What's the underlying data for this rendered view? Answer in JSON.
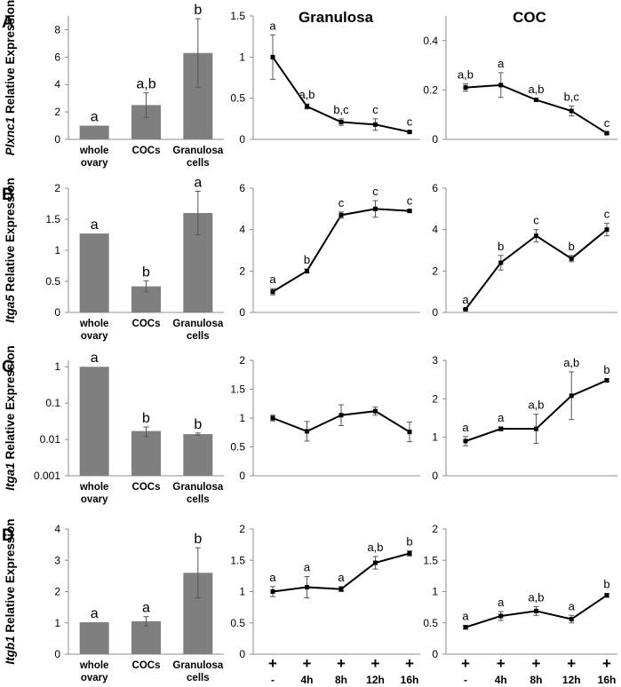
{
  "titles": {
    "granulosa": "Granulosa",
    "coc": "COC"
  },
  "x_timepoints": [
    "-",
    "4h",
    "8h",
    "12h",
    "16h"
  ],
  "plus_sign": "+",
  "tissue_categories": [
    [
      "whole",
      "ovary"
    ],
    [
      "COCs"
    ],
    [
      "Granulosa",
      "cells"
    ]
  ],
  "ylabel_suffix": "Relative Expression",
  "colors": {
    "bar": "#7f7f7f",
    "line": "#000000",
    "axis": "#8c8c8c"
  },
  "chart_data": [
    {
      "panel": "A",
      "gene": "Plxnc1",
      "bar": {
        "type": "bar",
        "scale": "linear",
        "ylim": [
          0,
          9
        ],
        "ticks": [
          0,
          2,
          4,
          6,
          8
        ],
        "tick_labels": [
          "0",
          "2",
          "4",
          "6",
          "8"
        ],
        "values": [
          1.0,
          2.5,
          6.3
        ],
        "errors": [
          0.0,
          0.9,
          2.5
        ],
        "letters": [
          "a",
          "a,b",
          "b"
        ]
      },
      "granulosa": {
        "type": "line",
        "ylim": [
          0,
          1.5
        ],
        "ticks": [
          0,
          0.5,
          1,
          1.5
        ],
        "tick_labels": [
          "0",
          "0.5",
          "1",
          "1.5"
        ],
        "values": [
          1.0,
          0.4,
          0.21,
          0.18,
          0.09
        ],
        "errors": [
          0.27,
          0.03,
          0.04,
          0.07,
          0.01
        ],
        "letters": [
          "a",
          "a,b",
          "b,c",
          "c",
          "c"
        ]
      },
      "coc": {
        "type": "line",
        "ylim": [
          0,
          0.5
        ],
        "ticks": [
          0,
          0.2,
          0.4
        ],
        "tick_labels": [
          "0",
          "0.2",
          "0.4"
        ],
        "values": [
          0.21,
          0.22,
          0.16,
          0.115,
          0.025
        ],
        "errors": [
          0.015,
          0.05,
          0.005,
          0.02,
          0.004
        ],
        "letters": [
          "a,b",
          "a",
          "a,b",
          "b,c",
          "c"
        ]
      }
    },
    {
      "panel": "B",
      "gene": "Itga5",
      "bar": {
        "type": "bar",
        "scale": "linear",
        "ylim": [
          0,
          2
        ],
        "ticks": [
          0,
          0.5,
          1,
          1.5,
          2
        ],
        "tick_labels": [
          "0",
          "0.5",
          "1",
          "1.5",
          "2"
        ],
        "values": [
          1.27,
          0.42,
          1.6
        ],
        "errors": [
          0.0,
          0.09,
          0.35
        ],
        "letters": [
          "a",
          "b",
          "a"
        ]
      },
      "granulosa": {
        "type": "line",
        "ylim": [
          0,
          6
        ],
        "ticks": [
          0,
          2,
          4,
          6
        ],
        "tick_labels": [
          "0",
          "2",
          "4",
          "6"
        ],
        "values": [
          1.0,
          2.0,
          4.7,
          5.0,
          4.9
        ],
        "errors": [
          0.15,
          0.1,
          0.15,
          0.4,
          0.05
        ],
        "letters": [
          "a",
          "b",
          "c",
          "c",
          "c"
        ]
      },
      "coc": {
        "type": "line",
        "ylim": [
          0,
          6
        ],
        "ticks": [
          0,
          2,
          4,
          6
        ],
        "tick_labels": [
          "0",
          "2",
          "4",
          "6"
        ],
        "values": [
          0.15,
          2.4,
          3.7,
          2.6,
          4.0
        ],
        "errors": [
          0.02,
          0.35,
          0.3,
          0.15,
          0.3
        ],
        "letters": [
          "a",
          "b",
          "c",
          "b",
          "c"
        ]
      }
    },
    {
      "panel": "C",
      "gene": "Itga1",
      "bar": {
        "type": "bar",
        "scale": "log",
        "ylim": [
          0.001,
          1.5
        ],
        "ticks": [
          0.001,
          0.01,
          0.1,
          1
        ],
        "tick_labels": [
          "0.001",
          "0.01",
          "0.1",
          "1"
        ],
        "values": [
          1.0,
          0.017,
          0.014
        ],
        "errors": [
          0.0,
          0.005,
          0.001
        ],
        "letters": [
          "a",
          "b",
          "b"
        ]
      },
      "granulosa": {
        "type": "line",
        "ylim": [
          0,
          2
        ],
        "ticks": [
          0,
          0.5,
          1,
          1.5,
          2
        ],
        "tick_labels": [
          "0",
          "0.5",
          "1",
          "1.5",
          "2"
        ],
        "values": [
          1.0,
          0.77,
          1.05,
          1.12,
          0.76
        ],
        "errors": [
          0.05,
          0.17,
          0.18,
          0.07,
          0.17
        ],
        "letters": [
          "",
          "",
          "",
          "",
          ""
        ]
      },
      "coc": {
        "type": "line",
        "ylim": [
          0,
          3
        ],
        "ticks": [
          0,
          1,
          2,
          3
        ],
        "tick_labels": [
          "0",
          "1",
          "2",
          "3"
        ],
        "values": [
          0.9,
          1.22,
          1.22,
          2.08,
          2.48
        ],
        "errors": [
          0.12,
          0.05,
          0.38,
          0.62,
          0.04
        ],
        "letters": [
          "a",
          "a",
          "a,b",
          "a,b",
          "b"
        ]
      }
    },
    {
      "panel": "D",
      "gene": "Itgb1",
      "bar": {
        "type": "bar",
        "scale": "linear",
        "ylim": [
          0,
          4
        ],
        "ticks": [
          0,
          1,
          2,
          3,
          4
        ],
        "tick_labels": [
          "0",
          "1",
          "2",
          "3",
          "4"
        ],
        "values": [
          1.02,
          1.05,
          2.6
        ],
        "errors": [
          0.0,
          0.15,
          0.8
        ],
        "letters": [
          "a",
          "a",
          "b"
        ]
      },
      "granulosa": {
        "type": "line",
        "ylim": [
          0,
          2
        ],
        "ticks": [
          0,
          0.5,
          1,
          1.5,
          2
        ],
        "tick_labels": [
          "0",
          "0.5",
          "1",
          "1.5",
          "2"
        ],
        "values": [
          1.0,
          1.07,
          1.04,
          1.46,
          1.61
        ],
        "errors": [
          0.08,
          0.17,
          0.04,
          0.1,
          0.04
        ],
        "letters": [
          "a",
          "a",
          "a",
          "a,b",
          "b"
        ]
      },
      "coc": {
        "type": "line",
        "ylim": [
          0,
          2
        ],
        "ticks": [
          0,
          0.5,
          1,
          1.5,
          2
        ],
        "tick_labels": [
          "0",
          "0.5",
          "1",
          "1.5",
          "2"
        ],
        "values": [
          0.43,
          0.61,
          0.69,
          0.56,
          0.94
        ],
        "errors": [
          0.03,
          0.07,
          0.07,
          0.06,
          0.03
        ],
        "letters": [
          "a",
          "a",
          "a,b",
          "a",
          "b"
        ]
      }
    }
  ]
}
